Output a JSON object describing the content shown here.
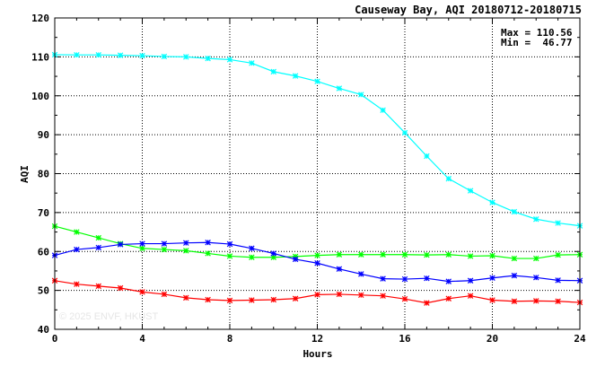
{
  "chart_data": {
    "type": "line",
    "title": "Causeway Bay, AQI 20180712-20180715",
    "xlabel": "Hours",
    "ylabel": "AQI",
    "xlim": [
      0,
      24
    ],
    "ylim": [
      40,
      120
    ],
    "xticks": [
      "0",
      "4",
      "8",
      "12",
      "16",
      "20",
      "24"
    ],
    "yticks": [
      "40",
      "50",
      "60",
      "70",
      "80",
      "90",
      "100",
      "110",
      "120"
    ],
    "grid": true,
    "stats": {
      "max_label": "Max = 110.56",
      "min_label": "Min =  46.77"
    },
    "watermark": "© 2025  ENVF, HKUST",
    "x": [
      0,
      1,
      2,
      3,
      4,
      5,
      6,
      7,
      8,
      9,
      10,
      11,
      12,
      13,
      14,
      15,
      16,
      17,
      18,
      19,
      20,
      21,
      22,
      23,
      24
    ],
    "series": [
      {
        "color": "#00ffff",
        "values": [
          110.56,
          110.5,
          110.5,
          110.4,
          110.3,
          110.1,
          110.0,
          109.6,
          109.3,
          108.4,
          106.2,
          105.1,
          103.7,
          101.9,
          100.3,
          96.3,
          90.5,
          84.5,
          78.7,
          75.6,
          72.6,
          70.2,
          68.3,
          67.3,
          66.6
        ]
      },
      {
        "color": "#00ff00",
        "values": [
          66.5,
          65.0,
          63.5,
          62.0,
          60.8,
          60.5,
          60.2,
          59.5,
          58.8,
          58.5,
          58.5,
          58.7,
          59.0,
          59.2,
          59.2,
          59.2,
          59.2,
          59.1,
          59.2,
          58.8,
          58.9,
          58.2,
          58.2,
          59.1,
          59.2
        ]
      },
      {
        "color": "#0000ff",
        "values": [
          59.0,
          60.5,
          61.0,
          61.8,
          62.0,
          62.0,
          62.2,
          62.3,
          61.9,
          60.8,
          59.5,
          58.0,
          57.0,
          55.5,
          54.2,
          53.0,
          52.9,
          53.1,
          52.3,
          52.5,
          53.2,
          53.8,
          53.3,
          52.6,
          52.5
        ]
      },
      {
        "color": "#ff0000",
        "values": [
          52.5,
          51.6,
          51.1,
          50.6,
          49.6,
          49.0,
          48.1,
          47.6,
          47.4,
          47.5,
          47.6,
          47.9,
          48.9,
          49.0,
          48.8,
          48.6,
          47.8,
          46.77,
          47.9,
          48.6,
          47.5,
          47.2,
          47.3,
          47.2,
          46.9
        ]
      }
    ]
  }
}
